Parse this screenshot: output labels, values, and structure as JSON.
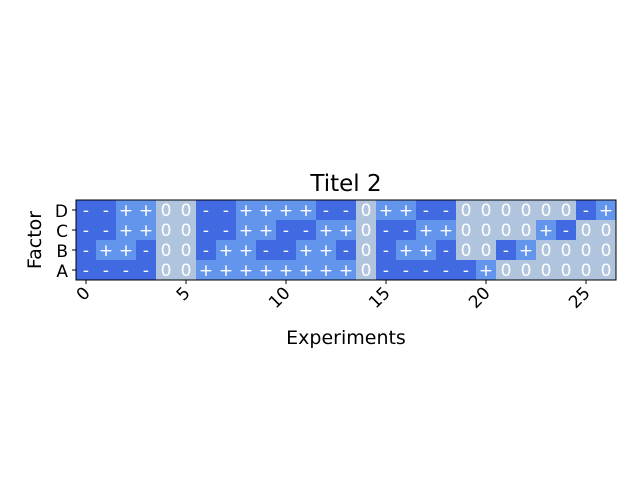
{
  "chart_data": {
    "type": "heatmap",
    "title": "Titel 2",
    "xlabel": "Experiments",
    "ylabel": "Factor",
    "rows": [
      "D",
      "C",
      "B",
      "A"
    ],
    "x_ticks": [
      "0",
      "5",
      "10",
      "15",
      "20",
      "25"
    ],
    "x_tick_values": [
      0,
      5,
      10,
      15,
      20,
      25
    ],
    "n_experiments": 27,
    "grid": false,
    "colors": {
      "-": "#4169E1",
      "+": "#6495ED",
      "0": "#B0C4DE"
    },
    "cells": [
      [
        "-",
        "-",
        "+",
        "+",
        "0",
        "0",
        "-",
        "-",
        "+",
        "+",
        "+",
        "+",
        "-",
        "-",
        "0",
        "+",
        "+",
        "-",
        "-",
        "0",
        "0",
        "0",
        "0",
        "0",
        "0",
        "-",
        "+"
      ],
      [
        "-",
        "-",
        "+",
        "+",
        "0",
        "0",
        "-",
        "-",
        "+",
        "+",
        "-",
        "-",
        "+",
        "+",
        "0",
        "-",
        "-",
        "+",
        "+",
        "0",
        "0",
        "0",
        "0",
        "+",
        "-",
        "0",
        "0"
      ],
      [
        "-",
        "+",
        "+",
        "-",
        "0",
        "0",
        "-",
        "+",
        "+",
        "-",
        "-",
        "+",
        "+",
        "-",
        "0",
        "-",
        "+",
        "+",
        "-",
        "0",
        "0",
        "-",
        "+",
        "0",
        "0",
        "0",
        "0"
      ],
      [
        "-",
        "-",
        "-",
        "-",
        "0",
        "0",
        "+",
        "+",
        "+",
        "+",
        "+",
        "+",
        "+",
        "+",
        "0",
        "-",
        "-",
        "-",
        "-",
        "-",
        "+",
        "0",
        "0",
        "0",
        "0",
        "0",
        "0"
      ]
    ]
  }
}
